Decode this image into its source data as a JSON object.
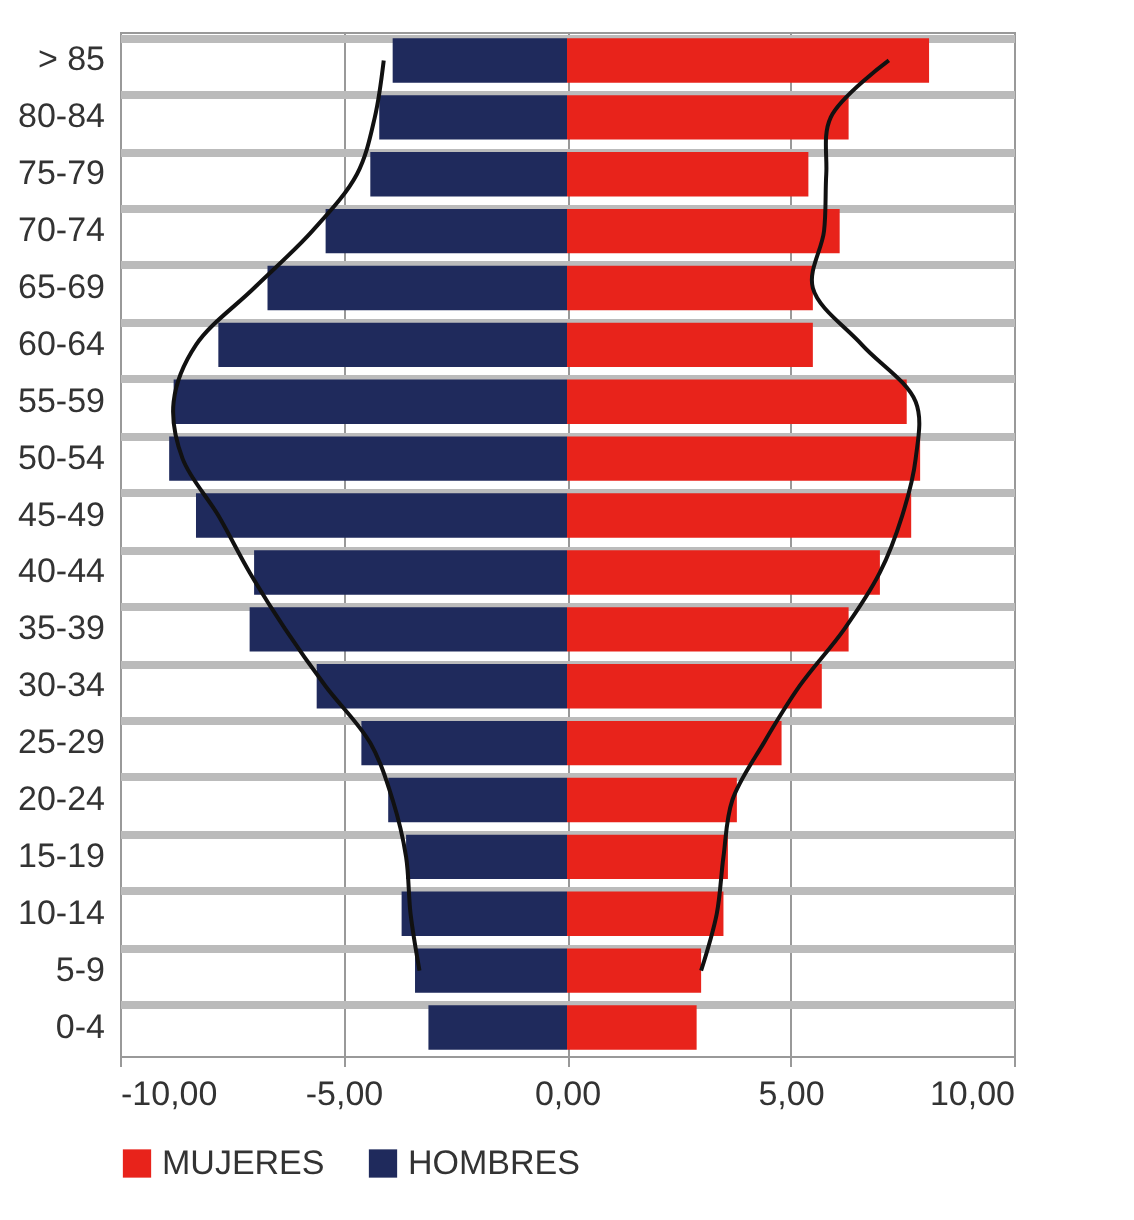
{
  "chart_data": {
    "type": "bar",
    "orientation": "horizontal",
    "categories": [
      "> 85",
      "80-84",
      "75-79",
      "70-74",
      "65-69",
      "60-64",
      "55-59",
      "50-54",
      "45-49",
      "40-44",
      "35-39",
      "30-34",
      "25-29",
      "20-24",
      "15-19",
      "10-14",
      "5-9",
      "0-4"
    ],
    "series": [
      {
        "name": "MUJERES",
        "color": "#e8231b",
        "values": [
          8.1,
          6.3,
          5.4,
          6.1,
          5.5,
          5.5,
          7.6,
          7.9,
          7.7,
          7.0,
          6.3,
          5.7,
          4.8,
          3.8,
          3.6,
          3.5,
          3.0,
          2.9
        ]
      },
      {
        "name": "HOMBRES",
        "color": "#1f2a5c",
        "values": [
          -3.9,
          -4.2,
          -4.4,
          -5.4,
          -6.7,
          -7.8,
          -8.8,
          -8.9,
          -8.3,
          -7.0,
          -7.1,
          -5.6,
          -4.6,
          -4.0,
          -3.6,
          -3.7,
          -3.4,
          -3.1
        ]
      },
      {
        "type": "line",
        "color": "#111111",
        "values": [
          -4.1,
          -4.3,
          -4.7,
          -5.7,
          -7.0,
          -8.3,
          -8.8,
          -8.6,
          -7.8,
          -7.1,
          -6.3,
          -5.4,
          -4.4,
          -3.9,
          -3.6,
          -3.5,
          -3.3,
          null
        ]
      },
      {
        "type": "line",
        "color": "#111111",
        "values": [
          7.2,
          5.9,
          5.8,
          5.75,
          5.5,
          6.6,
          7.8,
          7.8,
          7.5,
          7.0,
          6.2,
          5.2,
          4.4,
          3.7,
          3.5,
          3.35,
          3.0,
          null
        ]
      }
    ],
    "xlim": [
      -10,
      10
    ],
    "xticks": [
      {
        "value": -10,
        "label": "-10,00"
      },
      {
        "value": -5,
        "label": "-5,00"
      },
      {
        "value": 0,
        "label": "0,00"
      },
      {
        "value": 5,
        "label": "5,00"
      },
      {
        "value": 10,
        "label": "10,00"
      }
    ],
    "grid": true,
    "legend": "bottom",
    "stacked": true
  }
}
